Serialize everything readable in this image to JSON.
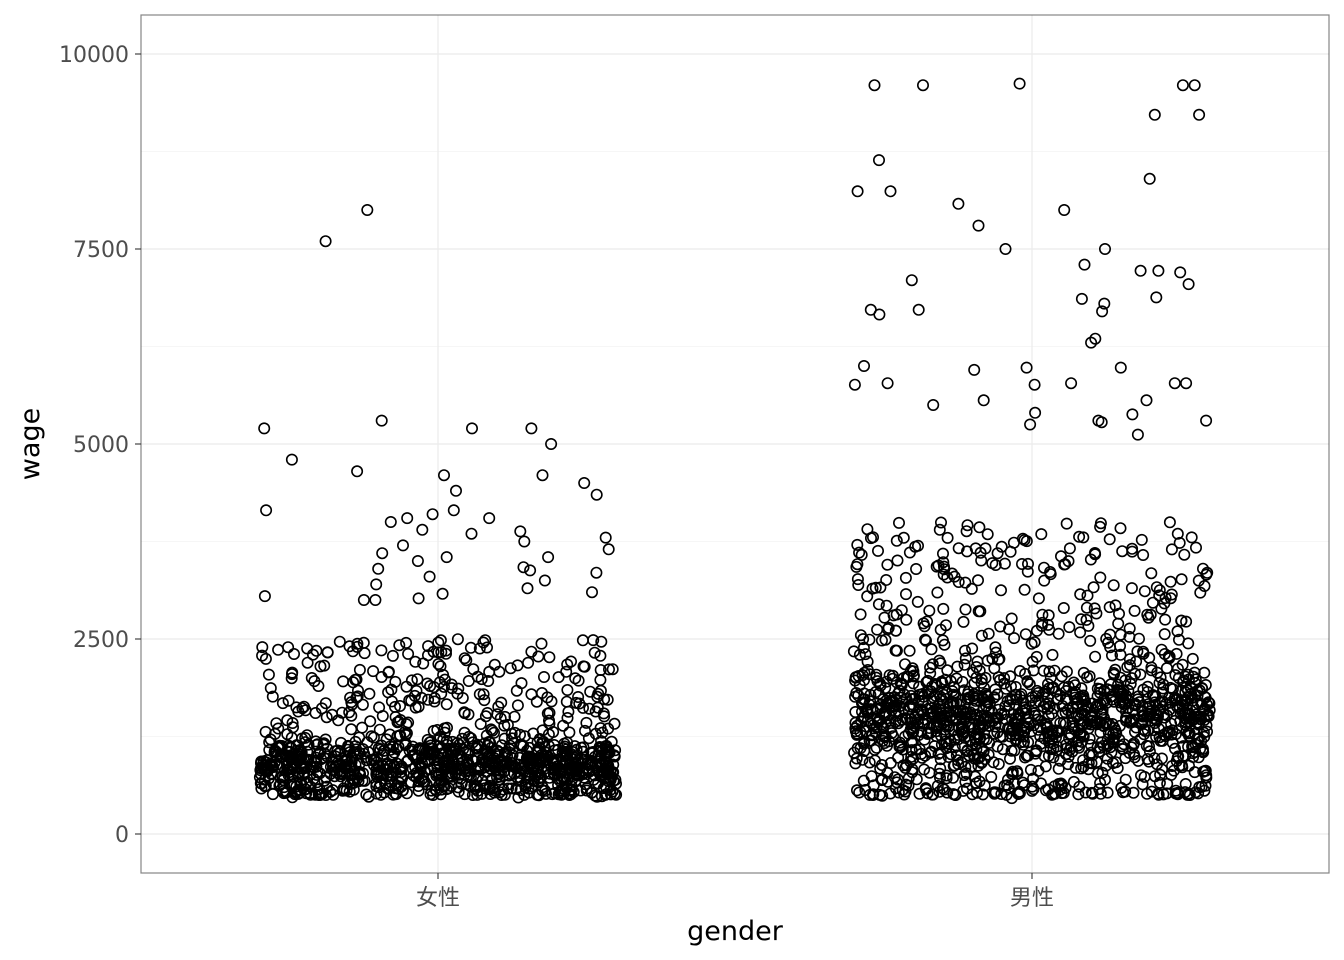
{
  "chart_data": {
    "type": "scatter",
    "subtype": "jitter",
    "title": "",
    "xlabel": "gender",
    "ylabel": "wage",
    "categories": [
      "女性",
      "男性"
    ],
    "ylim": [
      -500,
      10500
    ],
    "yticks": [
      0,
      2500,
      5000,
      7500,
      10000
    ],
    "grid": true,
    "legend": "none",
    "marker": "open-circle",
    "series": [
      {
        "category": "女性",
        "values": [
          8000,
          7600,
          5300,
          5200,
          5200,
          5200,
          5000,
          4800,
          4650,
          4600,
          4600,
          4500,
          4400,
          4350,
          4150,
          4150,
          4100,
          4050,
          4050,
          4000,
          3900,
          3880,
          3850,
          3800,
          3750,
          3700,
          3650,
          3600,
          3550,
          3550,
          3500,
          3420,
          3400,
          3380,
          3350,
          3300,
          3250,
          3200,
          3150,
          3100,
          3080,
          3050,
          3020,
          3000,
          3000
        ],
        "summary": {
          "n": 1200,
          "min": 450,
          "dense_range": [
            600,
            1200
          ],
          "common_range": [
            500,
            2500
          ]
        }
      },
      {
        "category": "男性",
        "values": [
          9620,
          9600,
          9600,
          9600,
          9600,
          9220,
          9220,
          8640,
          8400,
          8240,
          8240,
          8080,
          8000,
          7800,
          7500,
          7500,
          7300,
          7220,
          7220,
          7200,
          7100,
          7050,
          6880,
          6860,
          6800,
          6720,
          6720,
          6700,
          6660,
          6350,
          6300,
          6000,
          5980,
          5980,
          5950,
          5780,
          5780,
          5780,
          5780,
          5760,
          5760,
          5560,
          5560,
          5500,
          5400,
          5380,
          5300,
          5300,
          5280,
          5250,
          5120
        ],
        "summary": {
          "n": 1500,
          "min": 450,
          "dense_range": [
            1000,
            2000
          ],
          "common_range": [
            500,
            4000
          ]
        }
      }
    ]
  }
}
